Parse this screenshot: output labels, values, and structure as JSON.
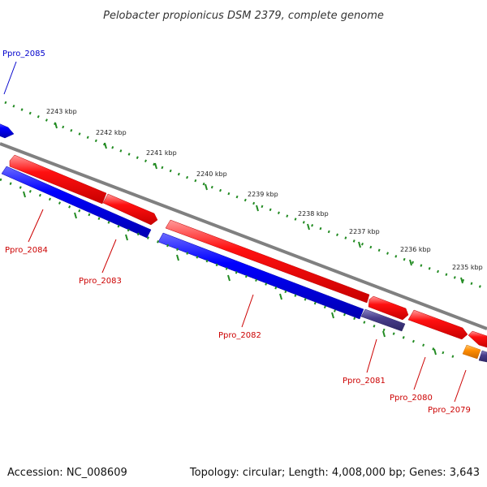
{
  "title": "Pelobacter propionicus DSM 2379, complete genome",
  "footer": {
    "accession": "Accession: NC_008609",
    "summary": "Topology: circular; Length: 4,008,000 bp; Genes: 3,643"
  },
  "colors": {
    "forward_cds": "#ff0000",
    "reverse_cds": "#0000ff",
    "rna": "#483d8b",
    "other": "#ff8c00",
    "backbone": "#808080",
    "ticks": "#228b22"
  },
  "scale_ticks": [
    "2243 kbp",
    "2242 kbp",
    "2241 kbp",
    "2240 kbp",
    "2239 kbp",
    "2238 kbp",
    "2237 kbp",
    "2236 kbp",
    "2235 kbp"
  ],
  "gene_labels": [
    {
      "text": "Ppro_2085",
      "color": "#0000cc"
    },
    {
      "text": "Ppro_2084",
      "color": "#cc0000"
    },
    {
      "text": "Ppro_2083",
      "color": "#cc0000"
    },
    {
      "text": "Ppro_2082",
      "color": "#cc0000"
    },
    {
      "text": "Ppro_2081",
      "color": "#cc0000"
    },
    {
      "text": "Ppro_2080",
      "color": "#cc0000"
    },
    {
      "text": "Ppro_2079",
      "color": "#cc0000"
    }
  ]
}
